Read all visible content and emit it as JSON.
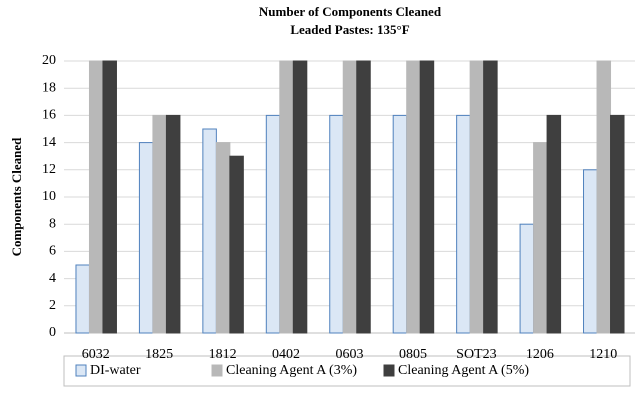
{
  "chart_data": {
    "type": "bar",
    "title": "Number of Components Cleaned",
    "subtitle": "Leaded Pastes: 135°F",
    "y_label": "Components Cleaned",
    "categories": [
      "6032",
      "1825",
      "1812",
      "0402",
      "0603",
      "0805",
      "SOT23",
      "1206",
      "1210"
    ],
    "series": [
      {
        "name": "DI-water",
        "color": "#dbe7f5",
        "edge": "#4f81bd",
        "values": [
          5,
          14,
          15,
          16,
          16,
          16,
          16,
          8,
          12
        ]
      },
      {
        "name": "Cleaning Agent A (3%)",
        "color": "#b8b8b8",
        "edge": "#b8b8b8",
        "values": [
          20,
          16,
          14,
          20,
          20,
          20,
          20,
          14,
          20
        ]
      },
      {
        "name": "Cleaning Agent A (5%)",
        "color": "#3f3f3f",
        "edge": "#3f3f3f",
        "values": [
          20,
          16,
          13,
          20,
          20,
          20,
          20,
          16,
          16
        ]
      }
    ],
    "ylim": [
      0,
      20
    ],
    "yticks": [
      0,
      2,
      4,
      6,
      8,
      10,
      12,
      14,
      16,
      18,
      20
    ],
    "grid": true,
    "legend": "bottom"
  }
}
